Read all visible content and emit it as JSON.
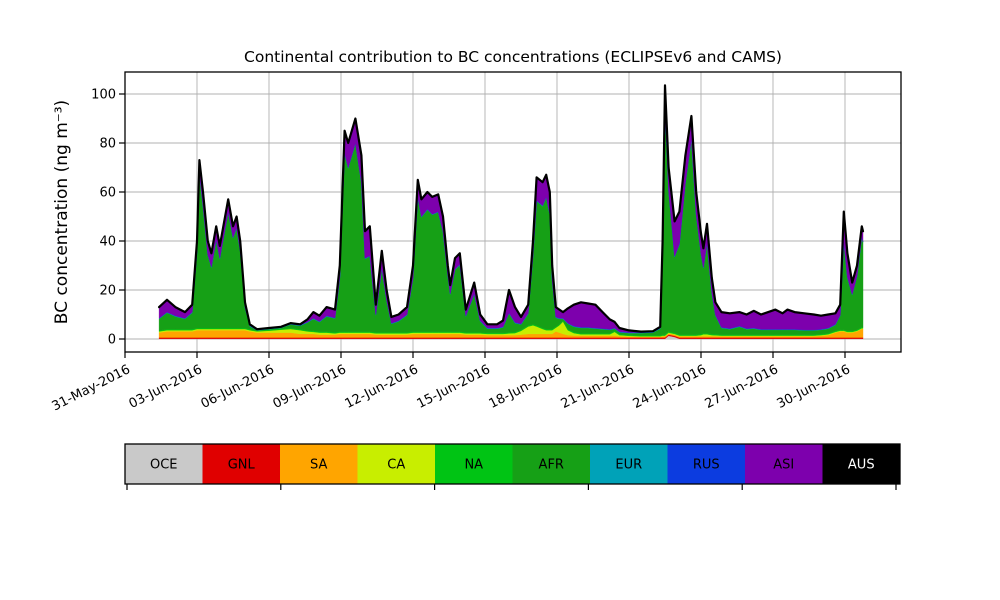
{
  "figure": {
    "title": "Continental contribution to BC concentrations (ECLIPSEv6 and CAMS)",
    "ylabel": "BC concentration (ng m⁻³)"
  },
  "axes": {
    "yticks": [
      0,
      20,
      40,
      60,
      80,
      100
    ],
    "xticks_days": [
      0,
      3,
      6,
      9,
      12,
      15,
      18,
      21,
      24,
      27,
      30
    ],
    "xtick_labels": [
      "31-May-2016",
      "03-Jun-2016",
      "06-Jun-2016",
      "09-Jun-2016",
      "12-Jun-2016",
      "15-Jun-2016",
      "18-Jun-2016",
      "21-Jun-2016",
      "24-Jun-2016",
      "27-Jun-2016",
      "30-Jun-2016"
    ],
    "grid_color": "#b0b0b0",
    "spine_color": "#000000"
  },
  "legend": {
    "entries": [
      {
        "label": "OCE",
        "color": "#c9c9c9",
        "text_color": "#000000"
      },
      {
        "label": "GNL",
        "color": "#e00000",
        "text_color": "#000000"
      },
      {
        "label": "SA",
        "color": "#ffa500",
        "text_color": "#000000"
      },
      {
        "label": "CA",
        "color": "#c8ee00",
        "text_color": "#000000"
      },
      {
        "label": "NA",
        "color": "#00c414",
        "text_color": "#000000"
      },
      {
        "label": "AFR",
        "color": "#16a016",
        "text_color": "#000000"
      },
      {
        "label": "EUR",
        "color": "#00a2b8",
        "text_color": "#000000"
      },
      {
        "label": "RUS",
        "color": "#0c3ce0",
        "text_color": "#000000"
      },
      {
        "label": "ASI",
        "color": "#7d00ad",
        "text_color": "#000000"
      },
      {
        "label": "AUS",
        "color": "#000000",
        "text_color": "#ffffff"
      }
    ]
  },
  "chart_data": {
    "type": "area",
    "stacked": true,
    "title": "Continental contribution to BC concentrations (ECLIPSEv6 and CAMS)",
    "xlabel": "",
    "ylabel": "BC concentration (ng m⁻³)",
    "ylim": [
      0,
      105
    ],
    "x_unit": "days after 31-May-2016 00:00 (1.0 = 01-Jun-2016)",
    "x_range_labels": [
      "31-May-2016",
      "30-Jun-2016"
    ],
    "grid": true,
    "legend_position": "bottom-strip",
    "total_line_color": "#000000",
    "x": [
      1.42,
      1.75,
      2.1,
      2.5,
      2.8,
      3.0,
      3.1,
      3.25,
      3.45,
      3.6,
      3.8,
      3.95,
      4.3,
      4.5,
      4.65,
      4.8,
      5.0,
      5.2,
      5.5,
      6.0,
      6.5,
      6.9,
      7.3,
      7.6,
      7.85,
      8.1,
      8.4,
      8.75,
      8.95,
      9.15,
      9.3,
      9.6,
      9.85,
      10.0,
      10.2,
      10.45,
      10.7,
      10.9,
      11.1,
      11.4,
      11.75,
      12.0,
      12.2,
      12.35,
      12.6,
      12.8,
      13.05,
      13.25,
      13.45,
      13.55,
      13.75,
      13.95,
      14.2,
      14.55,
      14.8,
      15.1,
      15.5,
      15.75,
      16.0,
      16.25,
      16.5,
      16.8,
      17.0,
      17.15,
      17.4,
      17.55,
      17.7,
      17.8,
      17.95,
      18.1,
      18.25,
      18.45,
      18.7,
      19.0,
      19.3,
      19.6,
      19.9,
      20.2,
      20.4,
      20.6,
      21.0,
      21.5,
      22.0,
      22.3,
      22.4,
      22.5,
      22.65,
      22.9,
      23.1,
      23.35,
      23.6,
      23.8,
      24.0,
      24.1,
      24.25,
      24.45,
      24.6,
      24.85,
      25.2,
      25.6,
      25.9,
      26.2,
      26.5,
      26.8,
      27.1,
      27.4,
      27.6,
      27.9,
      28.3,
      28.7,
      29.0,
      29.3,
      29.6,
      29.8,
      29.95,
      30.1,
      30.3,
      30.5,
      30.7,
      30.75
    ],
    "series": [
      {
        "name": "OCE",
        "color": "#c9c9c9",
        "const": 0.1,
        "bumps": [
          [
            22.65,
            1.3
          ],
          [
            22.9,
            0.8
          ]
        ]
      },
      {
        "name": "GNL",
        "color": "#e00000",
        "const": 0.5
      },
      {
        "name": "SA",
        "color": "#ffa500",
        "values": [
          2.0,
          2.5,
          2.5,
          2.5,
          2.5,
          3.0,
          3.0,
          3.0,
          3.0,
          3.0,
          3.0,
          3.0,
          3.0,
          3.0,
          3.0,
          3.0,
          3.0,
          2.5,
          2.0,
          2.0,
          2.0,
          2.0,
          1.5,
          1.5,
          1.5,
          1.2,
          1.2,
          1.2,
          1.5,
          1.5,
          1.5,
          1.5,
          1.5,
          1.5,
          1.5,
          1.2,
          1.2,
          1.2,
          1.2,
          1.2,
          1.2,
          1.5,
          1.5,
          1.5,
          1.5,
          1.5,
          1.5,
          1.5,
          1.5,
          1.5,
          1.5,
          1.5,
          1.2,
          1.2,
          1.2,
          1.0,
          1.0,
          1.0,
          1.0,
          1.0,
          1.2,
          1.5,
          1.5,
          1.5,
          1.5,
          1.5,
          1.5,
          1.5,
          2.5,
          2.0,
          1.5,
          1.0,
          0.8,
          0.8,
          0.8,
          0.8,
          0.8,
          0.8,
          0.8,
          0.5,
          0.4,
          0.3,
          0.3,
          0.3,
          0.5,
          0.5,
          0.5,
          0.5,
          0.5,
          0.5,
          0.5,
          0.5,
          0.5,
          0.5,
          0.5,
          0.5,
          0.5,
          0.5,
          0.5,
          0.5,
          0.5,
          0.5,
          0.5,
          0.5,
          0.5,
          0.5,
          0.5,
          0.5,
          0.5,
          0.5,
          0.7,
          1.0,
          2.0,
          2.5,
          2.5,
          2.0,
          2.0,
          2.5,
          3.5,
          3.5
        ]
      },
      {
        "name": "CA",
        "color": "#c8ee00",
        "values": [
          0.5,
          0.5,
          0.5,
          0.5,
          0.5,
          0.5,
          0.5,
          0.5,
          0.5,
          0.5,
          0.5,
          0.5,
          0.5,
          0.5,
          0.5,
          0.5,
          0.5,
          0.5,
          0.5,
          0.8,
          1.2,
          1.5,
          1.5,
          1.0,
          0.8,
          0.8,
          0.8,
          0.5,
          0.5,
          0.5,
          0.5,
          0.5,
          0.5,
          0.5,
          0.5,
          0.5,
          0.5,
          0.5,
          0.5,
          0.5,
          0.5,
          0.5,
          0.5,
          0.5,
          0.5,
          0.5,
          0.5,
          0.5,
          0.5,
          0.5,
          0.5,
          0.5,
          0.5,
          0.5,
          0.5,
          0.5,
          0.5,
          0.5,
          0.7,
          0.8,
          1.5,
          3.0,
          3.5,
          3.0,
          2.0,
          1.5,
          1.5,
          1.5,
          1.5,
          3.0,
          5.0,
          2.0,
          1.0,
          0.5,
          0.5,
          0.5,
          0.5,
          0.5,
          1.5,
          0.5,
          0.3,
          0.2,
          0.2,
          0.2,
          0.3,
          0.3,
          0.3,
          0.3,
          0.3,
          0.3,
          0.3,
          0.3,
          0.5,
          0.8,
          0.8,
          0.5,
          0.4,
          0.3,
          0.3,
          0.3,
          0.3,
          0.3,
          0.3,
          0.3,
          0.3,
          0.3,
          0.3,
          0.3,
          0.3,
          0.3,
          0.3,
          0.3,
          0.3,
          0.3,
          0.3,
          0.3,
          0.3,
          0.3,
          0.3,
          0.3
        ]
      },
      {
        "name": "NA",
        "color": "#00c414",
        "const": 0.4
      },
      {
        "name": "AFR",
        "color": "#16a016",
        "values": [
          4.7,
          6.7,
          5.2,
          4.2,
          6.7,
          30.7,
          62.7,
          49.7,
          29.7,
          24.7,
          35.7,
          28.2,
          47.2,
          36.7,
          40.7,
          31.2,
          8.2,
          1.2,
          0.0,
          0.2,
          0.3,
          1.4,
          1.4,
          3.2,
          4.9,
          3.9,
          6.2,
          5.7,
          21.7,
          72.7,
          66.7,
          76.7,
          60.7,
          29.7,
          30.7,
          7.0,
          26.0,
          13.0,
          3.5,
          4.5,
          7.0,
          21.7,
          54.7,
          46.7,
          49.7,
          47.7,
          48.7,
          40.7,
          22.7,
          15.2,
          25.2,
          27.2,
          6.5,
          15.5,
          4.5,
          1.7,
          1.7,
          2.2,
          7.7,
          3.7,
          2.2,
          4.7,
          27.7,
          50.7,
          49.7,
          53.7,
          46.7,
          19.7,
          3.7,
          2.2,
          0.7,
          2.2,
          2.2,
          2.2,
          2.2,
          1.9,
          1.7,
          1.4,
          0.9,
          0.7,
          0.7,
          0.9,
          1.1,
          2.7,
          34.7,
          92.7,
          57.5,
          31.0,
          36.7,
          61.7,
          79.7,
          48.7,
          32.7,
          26.7,
          36.7,
          16.7,
          7.7,
          2.7,
          2.2,
          3.2,
          2.2,
          2.4,
          1.9,
          1.9,
          1.9,
          1.9,
          1.9,
          1.9,
          1.7,
          1.7,
          1.7,
          1.9,
          2.4,
          5.7,
          35.7,
          21.7,
          14.7,
          21.7,
          36.7,
          34.7
        ]
      },
      {
        "name": "EUR",
        "color": "#00a2b8",
        "const": 0.15
      },
      {
        "name": "RUS",
        "color": "#0c3ce0",
        "const": 0.15
      },
      {
        "name": "ASI",
        "color": "#7d00ad",
        "values": [
          4.5,
          5.0,
          3.5,
          2.5,
          3.0,
          4.5,
          5.5,
          5.5,
          5.5,
          5.5,
          5.5,
          5.0,
          5.0,
          4.5,
          4.5,
          4.0,
          2.0,
          0.5,
          0.2,
          0.2,
          0.2,
          0.3,
          0.3,
          1.0,
          2.5,
          2.3,
          3.5,
          3.3,
          5.0,
          9.0,
          10.0,
          10.0,
          11.0,
          11.0,
          12.0,
          4.0,
          7.0,
          4.0,
          2.5,
          2.5,
          3.0,
          5.0,
          7.0,
          7.0,
          7.0,
          7.0,
          7.0,
          6.0,
          4.0,
          3.5,
          4.5,
          4.5,
          2.5,
          4.5,
          2.5,
          1.5,
          1.5,
          2.5,
          9.3,
          6.2,
          2.8,
          3.5,
          6.0,
          9.5,
          9.5,
          9.0,
          9.0,
          6.0,
          4.0,
          3.5,
          2.5,
          6.0,
          8.7,
          10.2,
          9.7,
          9.5,
          6.7,
          4.0,
          2.5,
          1.5,
          0.8,
          0.3,
          0.3,
          0.5,
          3.2,
          8.7,
          9.2,
          14.2,
          13.2,
          11.2,
          9.2,
          9.2,
          8.0,
          7.7,
          7.7,
          6.0,
          5.1,
          6.2,
          6.2,
          5.7,
          5.7,
          7.0,
          6.0,
          7.0,
          8.0,
          6.5,
          8.0,
          7.0,
          6.7,
          6.2,
          5.5,
          5.5,
          4.5,
          4.2,
          12.2,
          9.7,
          4.7,
          4.2,
          4.2,
          4.2
        ]
      },
      {
        "name": "AUS",
        "color": "#000000",
        "const": 0.0
      }
    ]
  }
}
